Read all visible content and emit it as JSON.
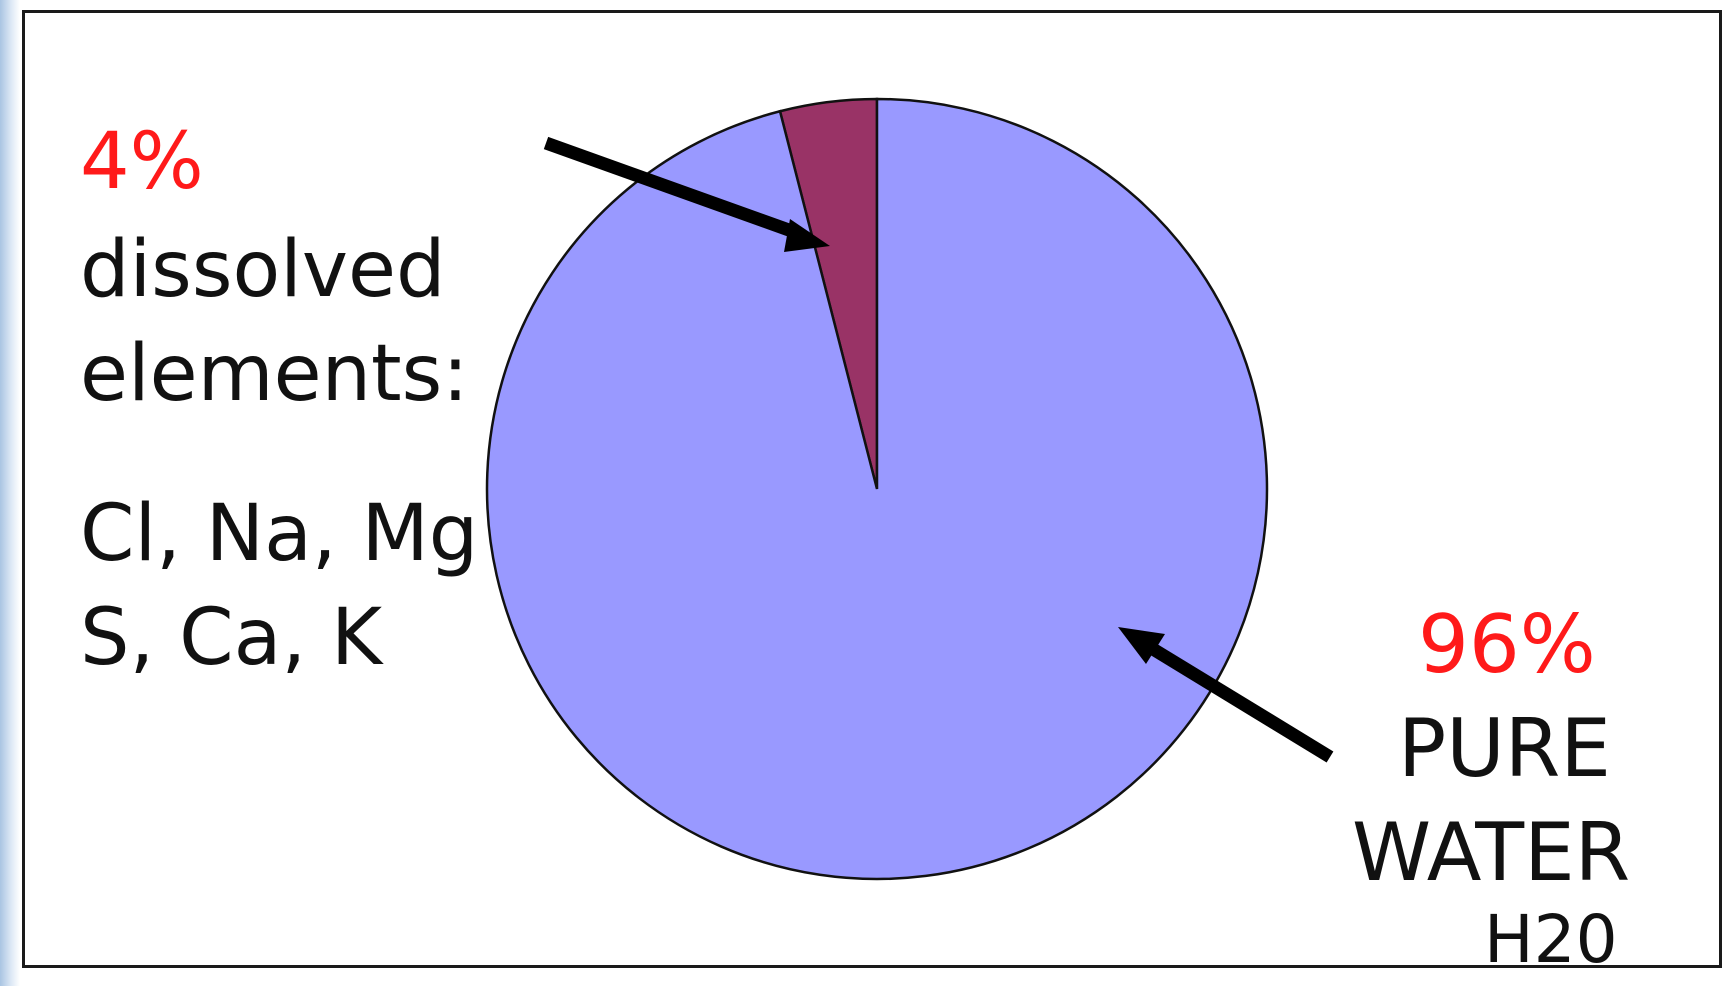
{
  "chart_data": {
    "type": "pie",
    "title": "",
    "slices": [
      {
        "label": "dissolved elements",
        "value": 4,
        "color": "#993366"
      },
      {
        "label": "PURE WATER",
        "value": 96,
        "color": "#9999ff"
      }
    ],
    "annotations": {
      "dissolved": {
        "percent": "4%",
        "line1": "dissolved",
        "line2": "elements:",
        "elements_line1": "Cl, Na, Mg",
        "elements_line2": "S, Ca, K"
      },
      "water": {
        "percent": "96%",
        "line1": "PURE",
        "line2": "WATER",
        "formula": "H20"
      }
    },
    "legend": "none",
    "grid": false
  },
  "colors": {
    "accent_text": "#ff1a1a",
    "text": "#111111",
    "outline": "#111111"
  }
}
